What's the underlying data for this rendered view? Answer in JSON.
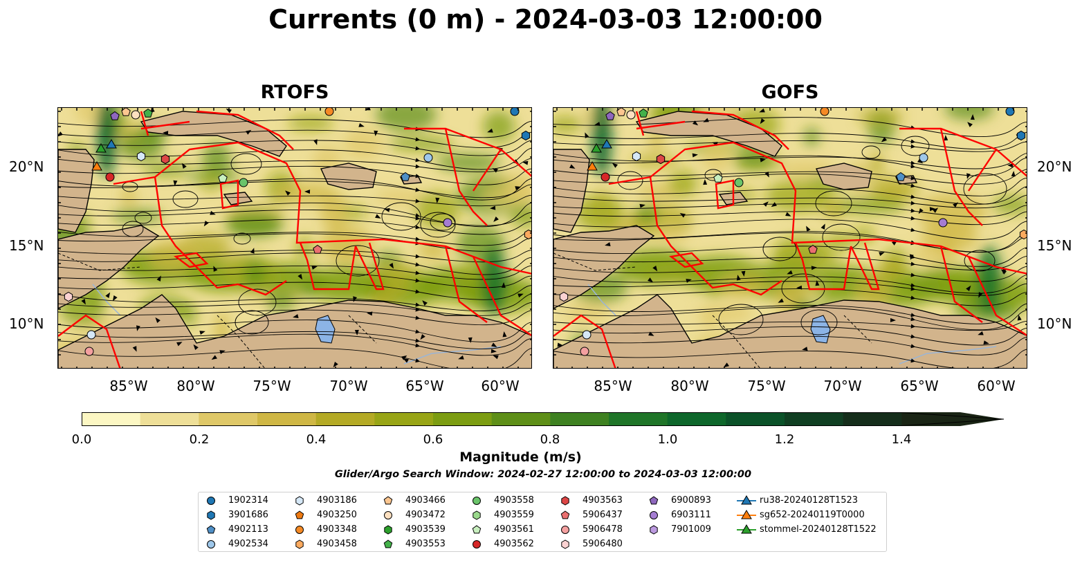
{
  "title": "Currents (0 m) - 2024-03-03 12:00:00",
  "panels": [
    {
      "title": "RTOFS"
    },
    {
      "title": "GOFS"
    }
  ],
  "map": {
    "lat_ticks": [
      "20°N",
      "15°N",
      "10°N"
    ],
    "lon_ticks": [
      "85°W",
      "80°W",
      "75°W",
      "70°W",
      "65°W",
      "60°W"
    ],
    "lon_range": [
      -89.5,
      -58
    ],
    "lat_range": [
      7,
      24
    ],
    "colors": {
      "land": "#d2b48c",
      "lake": "#8cb4e6",
      "rivers": "#9ab5d6",
      "stream_lines": "#000000",
      "eez_boundaries": "#ff0000",
      "coastline": "#000000"
    }
  },
  "colorbar": {
    "label": "Magnitude (m/s)",
    "ticks": [
      "0.0",
      "0.2",
      "0.4",
      "0.6",
      "0.8",
      "1.0",
      "1.2",
      "1.4"
    ],
    "min": 0.0,
    "max": 1.5,
    "extend": "max",
    "colors": [
      "#fcf7c3",
      "#eedf98",
      "#dfc868",
      "#cfb745",
      "#b4aa25",
      "#98a516",
      "#7c9d12",
      "#5e8f18",
      "#3e8121",
      "#1f7528",
      "#0e672b",
      "#0b5229",
      "#103f22",
      "#152e1b",
      "#1a2515"
    ]
  },
  "search_window": "Glider/Argo Search Window: 2024-02-27 12:00:00 to 2024-03-03 12:00:00",
  "legend": {
    "columns": [
      [
        {
          "label": "1902314",
          "marker": "circle",
          "color": "#1f77b4"
        },
        {
          "label": "3901686",
          "marker": "hexagon",
          "color": "#1f77b4"
        },
        {
          "label": "4902113",
          "marker": "pentagon",
          "color": "#4f8fc6"
        },
        {
          "label": "4902534",
          "marker": "circle",
          "color": "#9ec7ea"
        }
      ],
      [
        {
          "label": "4903186",
          "marker": "hexagon",
          "color": "#d6e8f7"
        },
        {
          "label": "4903250",
          "marker": "pentagon",
          "color": "#ee7a12"
        },
        {
          "label": "4903348",
          "marker": "circle",
          "color": "#f58a25"
        },
        {
          "label": "4903458",
          "marker": "hexagon",
          "color": "#fbaa5f"
        }
      ],
      [
        {
          "label": "4903466",
          "marker": "pentagon",
          "color": "#fcc690"
        },
        {
          "label": "4903472",
          "marker": "circle",
          "color": "#fde0c0"
        },
        {
          "label": "4903539",
          "marker": "hexagon",
          "color": "#2ca02c"
        },
        {
          "label": "4903553",
          "marker": "pentagon",
          "color": "#43b14a"
        }
      ],
      [
        {
          "label": "4903558",
          "marker": "circle",
          "color": "#6ac46a"
        },
        {
          "label": "4903559",
          "marker": "hexagon",
          "color": "#9ad98c"
        },
        {
          "label": "4903561",
          "marker": "pentagon",
          "color": "#c8efbf"
        },
        {
          "label": "4903562",
          "marker": "circle",
          "color": "#d62728"
        }
      ],
      [
        {
          "label": "4903563",
          "marker": "hexagon",
          "color": "#dd4646"
        },
        {
          "label": "5906437",
          "marker": "pentagon",
          "color": "#ea7070"
        },
        {
          "label": "5906478",
          "marker": "circle",
          "color": "#f4a0a0"
        },
        {
          "label": "5906480",
          "marker": "hexagon",
          "color": "#fbd2d2"
        }
      ],
      [
        {
          "label": "6900893",
          "marker": "pentagon",
          "color": "#8e67bd"
        },
        {
          "label": "6903111",
          "marker": "circle",
          "color": "#a57dd2"
        },
        {
          "label": "7901009",
          "marker": "hexagon",
          "color": "#bc9ae0"
        }
      ],
      [
        {
          "label": "ru38-20240128T1523",
          "marker": "triangle-line",
          "color": "#1f77b4"
        },
        {
          "label": "sg652-20240119T0000",
          "marker": "triangle-line",
          "color": "#ff7f0e"
        },
        {
          "label": "stommel-20240128T1522",
          "marker": "triangle-line",
          "color": "#2ca02c"
        }
      ]
    ]
  }
}
